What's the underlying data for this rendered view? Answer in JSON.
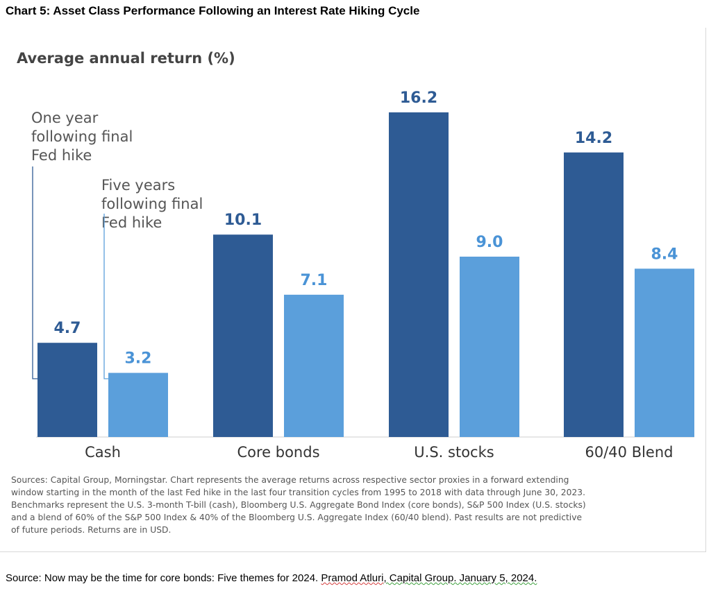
{
  "page": {
    "title": "Chart 5: Asset Class Performance Following an Interest Rate Hiking Cycle",
    "notes": "Sources: Capital Group, Morningstar. Chart represents the average returns across respective sector proxies in a forward extending window starting in the month of the last Fed hike in the last four transition cycles from 1995 to 2018 with data through June 30, 2023. Benchmarks represent the U.S. 3-month T-bill (cash), Bloomberg U.S. Aggregate Bond Index (core bonds), S&P 500 Index (U.S. stocks) and a blend of 60% of the S&P 500 Index & 40% of the Bloomberg U.S. Aggregate Index (60/40 blend). Past results are not predictive of future periods. Returns are in USD.",
    "footer_prefix": "Source: Now may be the time for core bonds: Five themes for 2024. ",
    "footer_author": "Pramod Atluri",
    "footer_org": ", Capital Group. January 5, 2024."
  },
  "chart_data": {
    "type": "bar",
    "title": "",
    "subtitle": "Average annual return (%)",
    "categories": [
      "Cash",
      "Core bonds",
      "U.S. stocks",
      "60/40 Blend"
    ],
    "series": [
      {
        "name": "One year following final Fed hike",
        "values": [
          4.7,
          10.1,
          16.2,
          14.2
        ],
        "color": "#2e5b94",
        "label_color": "#2e5b94"
      },
      {
        "name": "Five years following final Fed hike",
        "values": [
          3.2,
          7.1,
          9.0,
          8.4
        ],
        "color": "#5b9fdb",
        "label_color": "#4a93d6"
      }
    ],
    "series_label_lines": [
      [
        "One year",
        "following final",
        "Fed hike"
      ],
      [
        "Five years",
        "following final",
        "Fed hike"
      ]
    ],
    "value_labels": [
      [
        "4.7",
        "10.1",
        "16.2",
        "14.2"
      ],
      [
        "3.2",
        "7.1",
        "9.0",
        "8.4"
      ]
    ],
    "ylim": [
      0,
      17
    ],
    "xlabel": "",
    "ylabel": "",
    "grid": false,
    "legend": "callout-labels"
  }
}
